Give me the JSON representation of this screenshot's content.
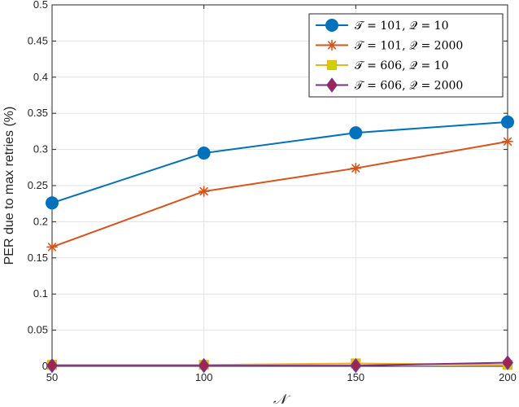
{
  "chart_data": {
    "type": "line",
    "title": "",
    "xlabel": "𝒩",
    "ylabel": "PER due to max retries (%)",
    "x": [
      50,
      100,
      150,
      200
    ],
    "xlim": [
      50,
      200
    ],
    "ylim": [
      0,
      0.5
    ],
    "xticks": [
      "50",
      "100",
      "150",
      "200"
    ],
    "yticks": [
      "0",
      "0.05",
      "0.1",
      "0.15",
      "0.2",
      "0.25",
      "0.3",
      "0.35",
      "0.4",
      "0.45",
      "0.5"
    ],
    "grid": true,
    "legend_position": "top-right",
    "series": [
      {
        "name": "𝒯 = 101, 𝒬 = 10",
        "marker": "circle",
        "color": "#0072BD",
        "values": [
          0.226,
          0.295,
          0.323,
          0.338
        ]
      },
      {
        "name": "𝒯 = 101, 𝒬 = 2000",
        "marker": "asterisk",
        "color": "#D95319",
        "values": [
          0.165,
          0.242,
          0.274,
          0.311
        ]
      },
      {
        "name": "𝒯 = 606, 𝒬 = 10",
        "marker": "square",
        "color": "#EDB120",
        "values": [
          0.002,
          0.002,
          0.004,
          0.002
        ]
      },
      {
        "name": "𝒯 = 606, 𝒬 = 2000",
        "marker": "diamond",
        "color": "#7E2F8E",
        "values": [
          0.001,
          0.001,
          0.001,
          0.005
        ]
      }
    ]
  }
}
